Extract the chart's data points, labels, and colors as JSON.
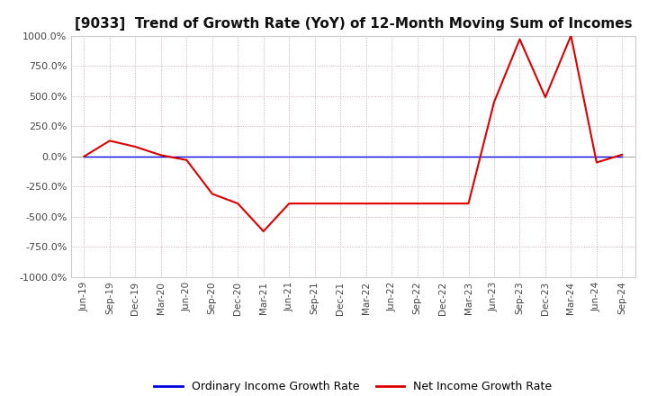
{
  "title": "[9033]  Trend of Growth Rate (YoY) of 12-Month Moving Sum of Incomes",
  "title_fontsize": 11,
  "ylim": [
    -1000,
    1000
  ],
  "yticks": [
    1000,
    750,
    500,
    250,
    0,
    -250,
    -500,
    -750,
    -1000
  ],
  "background_color": "#ffffff",
  "grid_color": "#ccaaaa",
  "legend_labels": [
    "Ordinary Income Growth Rate",
    "Net Income Growth Rate"
  ],
  "legend_colors": [
    "#0000dd",
    "#dd0000"
  ],
  "x_labels": [
    "Jun-19",
    "Sep-19",
    "Dec-19",
    "Mar-20",
    "Jun-20",
    "Sep-20",
    "Dec-20",
    "Mar-21",
    "Jun-21",
    "Sep-21",
    "Dec-21",
    "Mar-22",
    "Jun-22",
    "Sep-22",
    "Dec-22",
    "Mar-23",
    "Jun-23",
    "Sep-23",
    "Dec-23",
    "Mar-24",
    "Jun-24",
    "Sep-24"
  ],
  "ordinary_income_growth": [
    0,
    0,
    0,
    0,
    0,
    0,
    0,
    0,
    0,
    0,
    0,
    0,
    0,
    0,
    0,
    0,
    0,
    0,
    0,
    0,
    0,
    0
  ],
  "net_income_growth": [
    0,
    130,
    80,
    10,
    -30,
    -310,
    -390,
    -620,
    -390,
    -390,
    -390,
    -390,
    -390,
    -390,
    -390,
    -390,
    450,
    970,
    490,
    1000,
    -50,
    15
  ]
}
